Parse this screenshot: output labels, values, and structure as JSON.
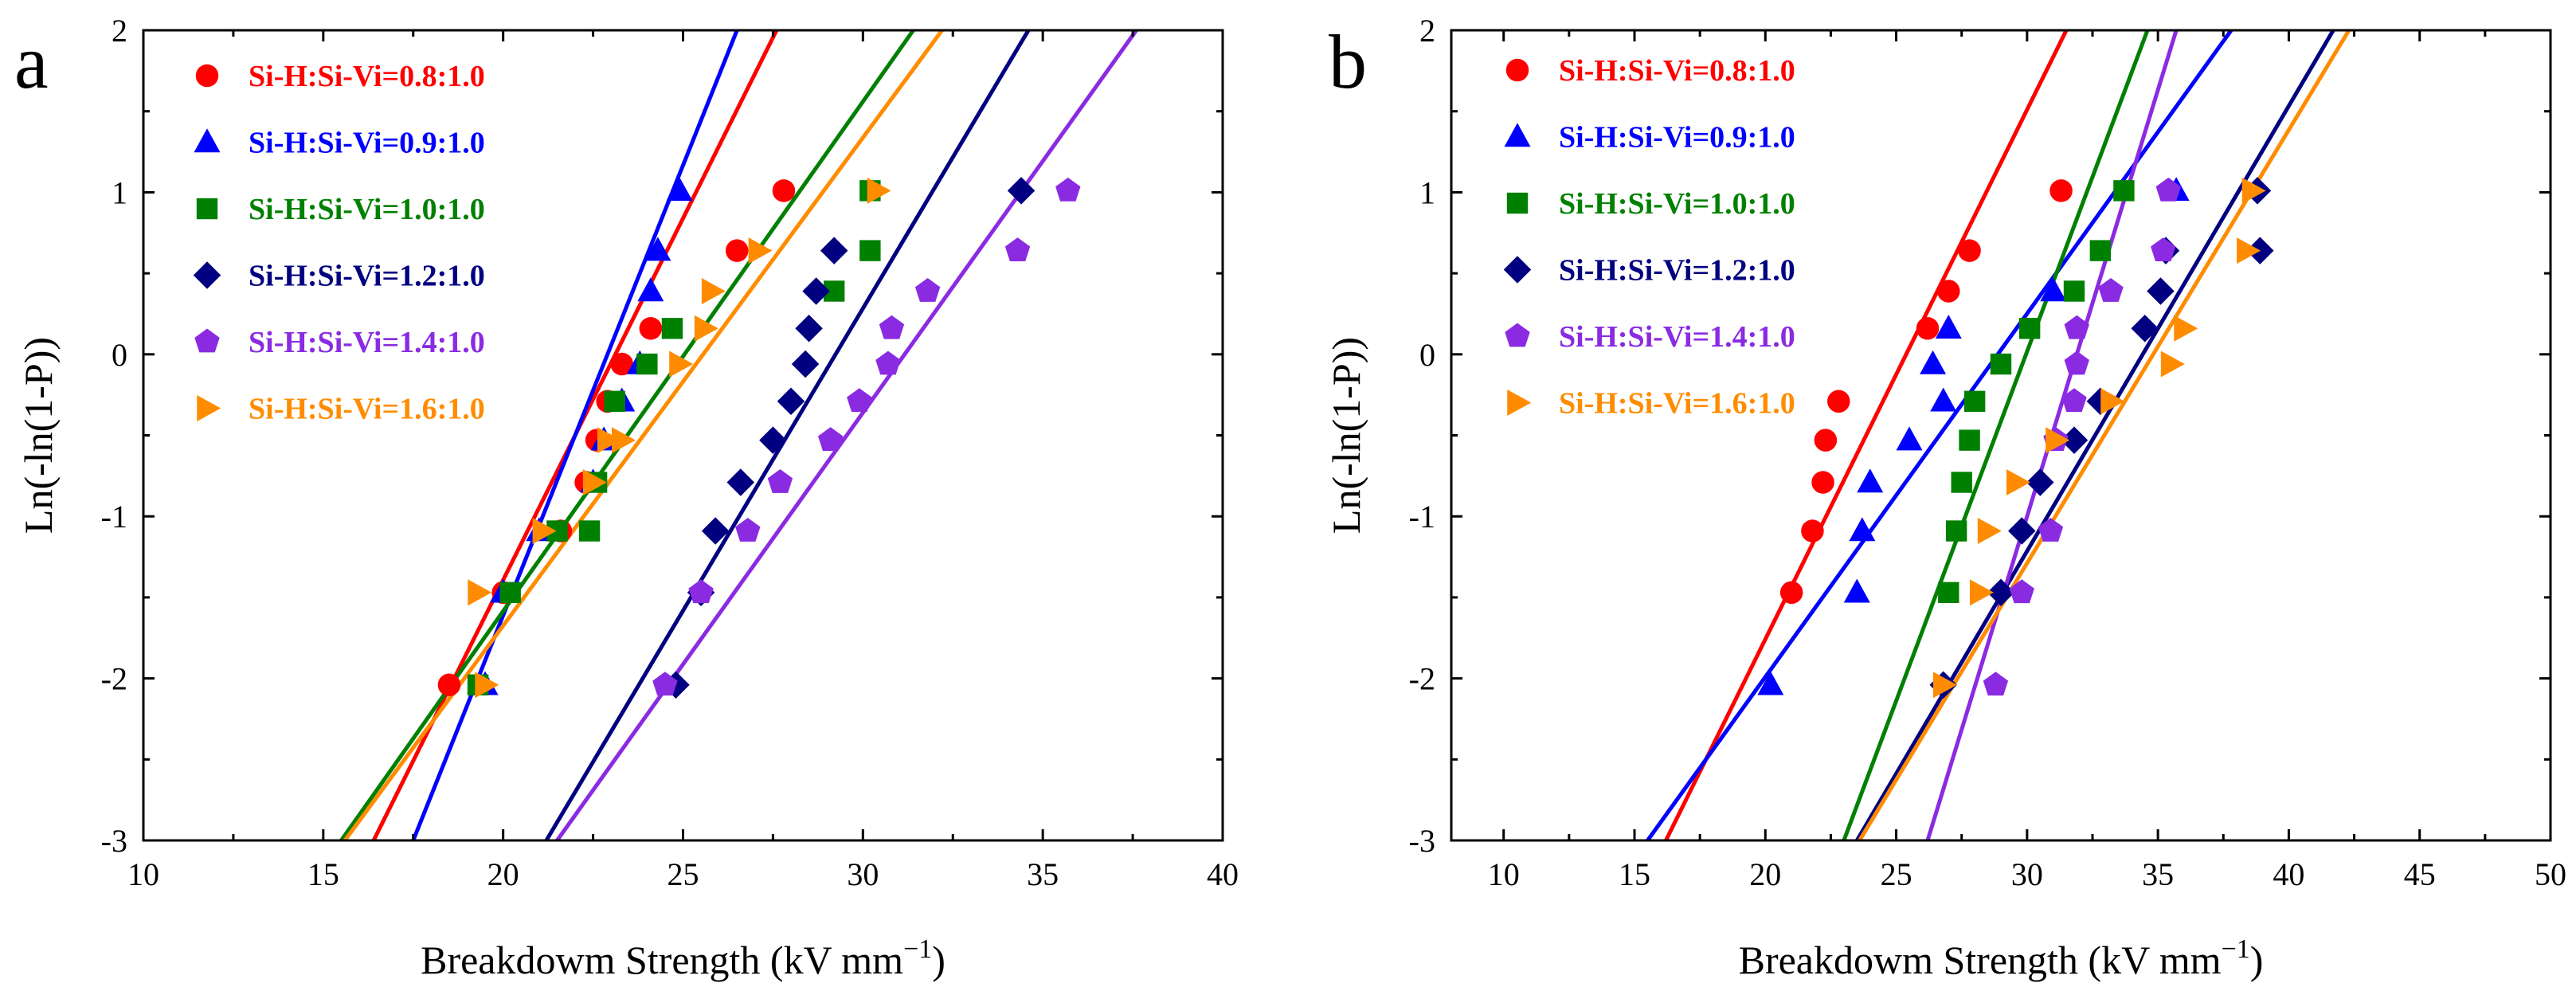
{
  "figure": {
    "caption_letters": [
      "a",
      "b"
    ]
  },
  "chart_data": [
    {
      "panel_letter": "a",
      "type": "scatter",
      "xlabel": "Breakdowm Strength (kV mm",
      "xlabel_sup": "−1",
      "xlabel_close": ")",
      "ylabel": "Ln(-ln(1-P))",
      "xlim": [
        10,
        40
      ],
      "ylim": [
        -3,
        2
      ],
      "xticks": [
        10,
        15,
        20,
        25,
        30,
        35,
        40
      ],
      "yticks": [
        -3,
        -2,
        -1,
        0,
        1,
        2
      ],
      "legend_position": "top-left",
      "series": [
        {
          "name": "Si-H:Si-Vi=0.8:1.0",
          "color": "#ff0000",
          "marker": "circle",
          "x": [
            18.5,
            20.0,
            21.6,
            22.3,
            22.6,
            22.9,
            23.3,
            24.1,
            26.5,
            27.8
          ],
          "y": [
            -2.04,
            -1.47,
            -1.09,
            -0.79,
            -0.53,
            -0.29,
            -0.06,
            0.16,
            0.64,
            1.01
          ],
          "fit": [
            [
              16.4,
              -3
            ],
            [
              27.6,
              2
            ]
          ]
        },
        {
          "name": "Si-H:Si-Vi=0.9:1.0",
          "color": "#0000ff",
          "marker": "triangle-up",
          "x": [
            19.5,
            20.0,
            21.0,
            22.5,
            22.8,
            23.3,
            23.8,
            24.1,
            24.3,
            24.9
          ],
          "y": [
            -2.04,
            -1.47,
            -1.09,
            -0.79,
            -0.53,
            -0.29,
            -0.06,
            0.39,
            0.64,
            1.01
          ],
          "fit": [
            [
              17.5,
              -3
            ],
            [
              26.5,
              2
            ]
          ]
        },
        {
          "name": "Si-H:Si-Vi=1.0:1.0",
          "color": "#008000",
          "marker": "square",
          "x": [
            19.3,
            20.2,
            21.5,
            22.4,
            22.6,
            23.1,
            24.0,
            24.7,
            29.2,
            30.2,
            30.2
          ],
          "y": [
            -2.04,
            -1.47,
            -1.09,
            -1.09,
            -0.79,
            -0.29,
            -0.06,
            0.16,
            0.39,
            0.64,
            1.01
          ],
          "fit": [
            [
              15.5,
              -3
            ],
            [
              31.4,
              2
            ]
          ]
        },
        {
          "name": "Si-H:Si-Vi=1.2:1.0",
          "color": "#000080",
          "marker": "diamond",
          "x": [
            24.8,
            25.5,
            25.9,
            26.6,
            27.5,
            28.0,
            28.4,
            28.5,
            28.7,
            29.2,
            34.4
          ],
          "y": [
            -2.04,
            -1.47,
            -1.09,
            -0.79,
            -0.53,
            -0.29,
            -0.06,
            0.16,
            0.39,
            0.64,
            1.01
          ],
          "fit": [
            [
              21.2,
              -3
            ],
            [
              34.6,
              2
            ]
          ]
        },
        {
          "name": "Si-H:Si-Vi=1.4:1.0",
          "color": "#8a2be2",
          "marker": "pentagon",
          "x": [
            24.5,
            25.5,
            26.8,
            27.7,
            29.1,
            29.9,
            30.7,
            30.8,
            31.8,
            34.3,
            35.7
          ],
          "y": [
            -2.04,
            -1.47,
            -1.09,
            -0.79,
            -0.53,
            -0.29,
            -0.06,
            0.16,
            0.39,
            0.64,
            1.01
          ],
          "fit": [
            [
              21.5,
              -3
            ],
            [
              37.6,
              2
            ]
          ]
        },
        {
          "name": "Si-H:Si-Vi=1.6:1.0",
          "color": "#ff8c00",
          "marker": "triangle-right",
          "x": [
            19.5,
            19.3,
            21.1,
            22.5,
            22.9,
            23.3,
            24.9,
            25.6,
            25.8,
            27.1,
            30.4
          ],
          "y": [
            -2.04,
            -1.47,
            -1.09,
            -0.79,
            -0.53,
            -0.53,
            -0.06,
            0.16,
            0.39,
            0.64,
            1.01
          ],
          "fit": [
            [
              15.6,
              -3
            ],
            [
              32.2,
              2
            ]
          ]
        }
      ]
    },
    {
      "panel_letter": "b",
      "type": "scatter",
      "xlabel": "Breakdowm Strength (kV mm",
      "xlabel_sup": "−1",
      "xlabel_close": ")",
      "ylabel": "Ln(-ln(1-P))",
      "xlim": [
        8,
        50
      ],
      "ylim": [
        -3,
        2
      ],
      "xticks": [
        10,
        15,
        20,
        25,
        30,
        35,
        40,
        45,
        50
      ],
      "yticks": [
        -3,
        -2,
        -1,
        0,
        1,
        2
      ],
      "legend_position": "top-left",
      "series": [
        {
          "name": "Si-H:Si-Vi=0.8:1.0",
          "color": "#ff0000",
          "marker": "circle",
          "x": [
            21.0,
            21.8,
            22.2,
            22.3,
            22.8,
            26.2,
            27.0,
            27.8,
            31.3
          ],
          "y": [
            -1.47,
            -1.09,
            -0.79,
            -0.53,
            -0.29,
            0.16,
            0.39,
            0.64,
            1.01
          ],
          "fit": [
            [
              16.2,
              -3
            ],
            [
              31.5,
              2
            ]
          ]
        },
        {
          "name": "Si-H:Si-Vi=0.9:1.0",
          "color": "#0000ff",
          "marker": "triangle-up",
          "x": [
            20.2,
            23.5,
            23.7,
            24.0,
            25.5,
            26.8,
            26.4,
            27.0,
            31.0,
            35.7
          ],
          "y": [
            -2.04,
            -1.47,
            -1.09,
            -0.79,
            -0.53,
            -0.29,
            -0.06,
            0.16,
            0.39,
            1.01
          ],
          "fit": [
            [
              15.5,
              -3
            ],
            [
              37.8,
              2
            ]
          ]
        },
        {
          "name": "Si-H:Si-Vi=1.0:1.0",
          "color": "#008000",
          "marker": "square",
          "x": [
            27.0,
            27.3,
            27.5,
            27.8,
            28.0,
            29.0,
            30.1,
            31.8,
            32.8,
            33.7
          ],
          "y": [
            -1.47,
            -1.09,
            -0.79,
            -0.53,
            -0.29,
            -0.06,
            0.16,
            0.39,
            0.64,
            1.01
          ],
          "fit": [
            [
              23.0,
              -3
            ],
            [
              34.6,
              2
            ]
          ]
        },
        {
          "name": "Si-H:Si-Vi=1.2:1.0",
          "color": "#000080",
          "marker": "diamond",
          "x": [
            26.8,
            29.0,
            29.8,
            30.5,
            31.8,
            32.8,
            34.5,
            35.1,
            35.3,
            38.9,
            38.8
          ],
          "y": [
            -2.04,
            -1.47,
            -1.09,
            -0.79,
            -0.53,
            -0.29,
            0.16,
            0.39,
            0.64,
            0.64,
            1.01
          ],
          "fit": [
            [
              23.5,
              -3
            ],
            [
              41.7,
              2
            ]
          ]
        },
        {
          "name": "Si-H:Si-Vi=1.4:1.0",
          "color": "#8a2be2",
          "marker": "pentagon",
          "x": [
            28.8,
            29.8,
            30.9,
            31.1,
            31.8,
            31.9,
            31.9,
            33.2,
            35.2,
            35.4
          ],
          "y": [
            -2.04,
            -1.47,
            -1.09,
            -0.53,
            -0.29,
            -0.06,
            0.16,
            0.39,
            0.64,
            1.01
          ],
          "fit": [
            [
              26.2,
              -3
            ],
            [
              35.7,
              2
            ]
          ]
        },
        {
          "name": "Si-H:Si-Vi=1.6:1.0",
          "color": "#ff8c00",
          "marker": "triangle-right",
          "x": [
            26.8,
            28.2,
            28.5,
            29.6,
            31.1,
            33.2,
            35.5,
            36.0,
            38.4,
            38.6
          ],
          "y": [
            -2.04,
            -1.47,
            -1.09,
            -0.79,
            -0.53,
            -0.29,
            -0.06,
            0.16,
            0.64,
            1.01
          ],
          "fit": [
            [
              23.6,
              -3
            ],
            [
              42.3,
              2
            ]
          ]
        }
      ]
    }
  ]
}
